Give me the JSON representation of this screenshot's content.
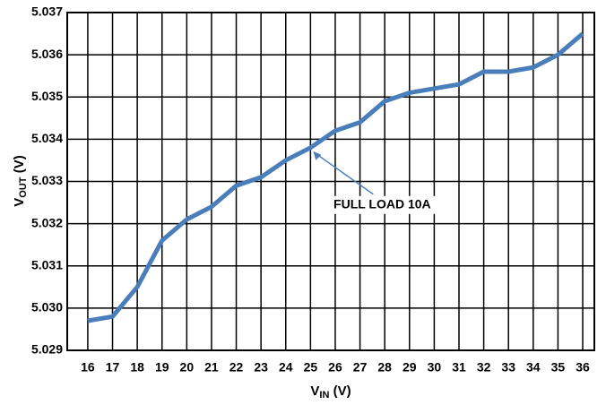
{
  "chart_data": {
    "type": "line",
    "ylabel": [
      "V",
      "OUT",
      " (V)"
    ],
    "xlabel": [
      "V",
      "IN",
      " (V)"
    ],
    "x": [
      16,
      17,
      18,
      19,
      20,
      21,
      22,
      23,
      24,
      25,
      26,
      27,
      28,
      29,
      30,
      31,
      32,
      33,
      34,
      35,
      36
    ],
    "series": [
      {
        "color": "#4a7ebb",
        "values": [
          5.0297,
          5.0298,
          5.0305,
          5.0316,
          5.0321,
          5.0324,
          5.0329,
          5.0331,
          5.0335,
          5.0338,
          5.0342,
          5.0344,
          5.0349,
          5.0351,
          5.0352,
          5.0353,
          5.0356,
          5.0356,
          5.0357,
          5.036,
          5.0365
        ]
      }
    ],
    "annotation": {
      "text": "FULL LOAD 10A",
      "x": 25,
      "y": 5.0338
    },
    "xlim": [
      15.17,
      36.47
    ],
    "xticks": [
      16,
      17,
      18,
      19,
      20,
      21,
      22,
      23,
      24,
      25,
      26,
      27,
      28,
      29,
      30,
      31,
      32,
      33,
      34,
      35,
      36
    ],
    "ylim": [
      5.029,
      5.037
    ],
    "yticks": [
      5.029,
      {
        "value": 5.03,
        "label": "5.030"
      },
      5.031,
      5.032,
      5.033,
      5.034,
      5.035,
      5.036,
      5.037
    ],
    "grid": true
  }
}
